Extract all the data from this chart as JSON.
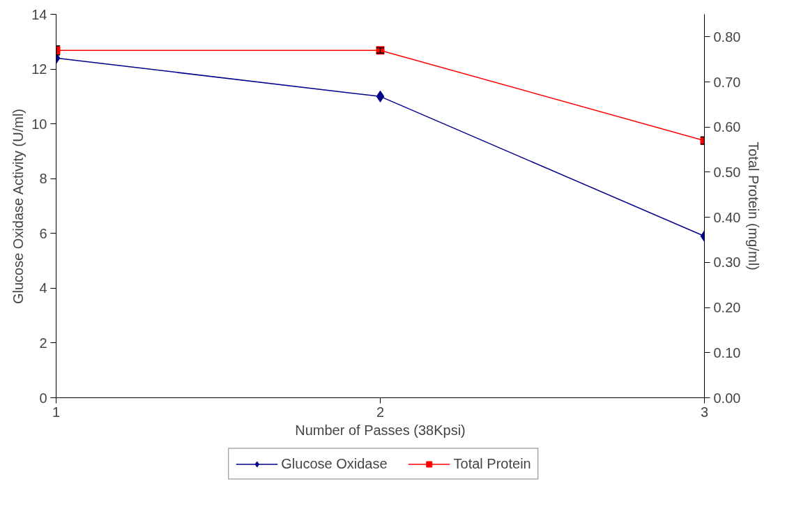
{
  "chart_data": {
    "type": "line",
    "xlabel": "Number of Passes (38Kpsi)",
    "ylabel": "Glucose Oxidase Activity (U/ml)",
    "y2label": "Total Protein (mg/ml)",
    "x": [
      1,
      2,
      3
    ],
    "xlim": [
      1,
      3
    ],
    "xticks": [
      1,
      2,
      3
    ],
    "ylim": [
      0,
      14
    ],
    "yticks": [
      0,
      2,
      4,
      6,
      8,
      10,
      12,
      14
    ],
    "y2lim": [
      0,
      0.85
    ],
    "y2ticks": [
      {
        "value": 0,
        "label": "0.00"
      },
      {
        "value": 0.1,
        "label": "0.10"
      },
      {
        "value": 0.2,
        "label": "0.20"
      },
      {
        "value": 0.3,
        "label": "0.30"
      },
      {
        "value": 0.4,
        "label": "0.40"
      },
      {
        "value": 0.5,
        "label": "0.50"
      },
      {
        "value": 0.6,
        "label": "0.60"
      },
      {
        "value": 0.7,
        "label": "0.70"
      },
      {
        "value": 0.8,
        "label": "0.80"
      }
    ],
    "series": [
      {
        "name": "Glucose Oxidase",
        "color": "#00008b",
        "marker": "diamond",
        "values": [
          12.4,
          11.0,
          5.9
        ]
      },
      {
        "name": "Total Protein",
        "color": "#ff0000",
        "marker": "square",
        "axis": "y2",
        "values": [
          0.77,
          0.77,
          0.57
        ],
        "errors": [
          0.01,
          0.006,
          0.008
        ]
      }
    ],
    "grid": false,
    "legend": "bottom",
    "line_style": "solid"
  }
}
